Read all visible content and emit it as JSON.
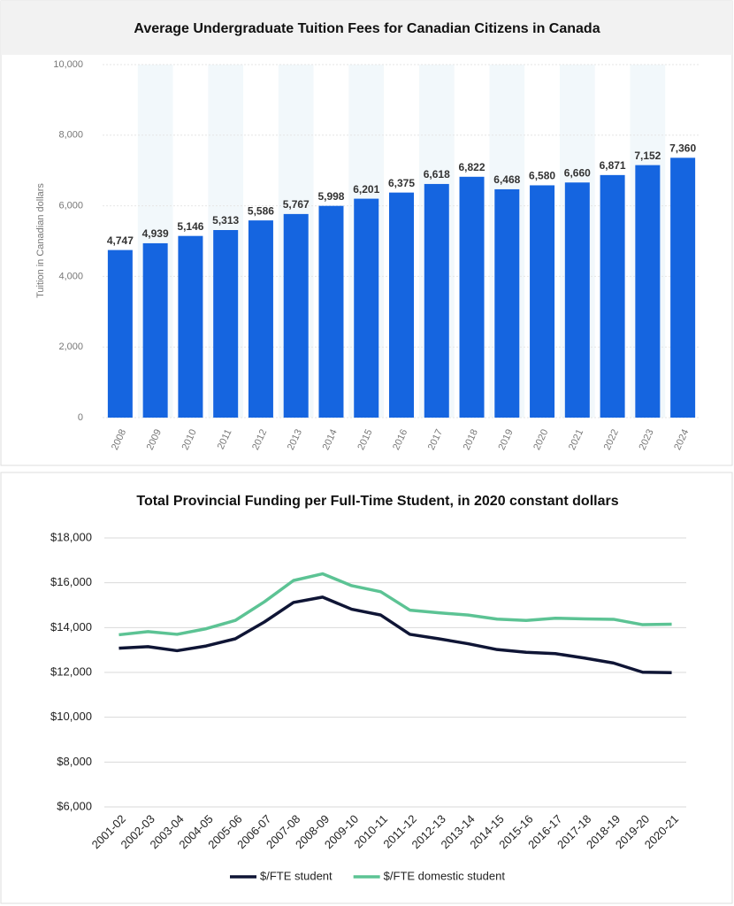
{
  "chart_data": [
    {
      "type": "bar",
      "title": "Average Undergraduate Tuition Fees for Canadian Citizens in Canada",
      "y_label": "Tuition in Canadian dollars",
      "categories": [
        "2008",
        "2009",
        "2010",
        "2011",
        "2012",
        "2013",
        "2014",
        "2015",
        "2016",
        "2017",
        "2018",
        "2019",
        "2020",
        "2021",
        "2022",
        "2023",
        "2024"
      ],
      "values": [
        4747,
        4939,
        5146,
        5313,
        5586,
        5767,
        5998,
        6201,
        6375,
        6618,
        6822,
        6468,
        6580,
        6660,
        6871,
        7152,
        7360
      ],
      "value_labels": [
        "4,747",
        "4,939",
        "5,146",
        "5,313",
        "5,586",
        "5,767",
        "5,998",
        "6,201",
        "6,375",
        "6,618",
        "6,822",
        "6,468",
        "6,580",
        "6,660",
        "6,871",
        "7,152",
        "7,360"
      ],
      "color": "#1565e0",
      "ylim": [
        0,
        10000
      ],
      "yticks": [
        0,
        {
          "value": 2000,
          "label": "2,000"
        },
        {
          "value": 4000,
          "label": "4,000"
        },
        {
          "value": 6000,
          "label": "6,000"
        },
        {
          "value": 8000,
          "label": "8,000"
        },
        {
          "value": 10000,
          "label": "10,000"
        }
      ],
      "grid": true
    },
    {
      "type": "line",
      "title": "Total Provincial Funding per Full-Time Student, in 2020 constant dollars",
      "categories": [
        "2001-02",
        "2002-03",
        "2003-04",
        "2004-05",
        "2005-06",
        "2006-07",
        "2007-08",
        "2008-09",
        "2009-10",
        "2010-11",
        "2011-12",
        "2012-13",
        "2013-14",
        "2014-15",
        "2015-16",
        "2016-17",
        "2017-18",
        "2018-19",
        "2019-20",
        "2020-21"
      ],
      "series": [
        {
          "name": "$/FTE student",
          "color": "#0f1535",
          "values": [
            13080,
            13150,
            12970,
            13180,
            13500,
            14250,
            15120,
            15360,
            14820,
            14560,
            13700,
            13500,
            13280,
            13020,
            12900,
            12840,
            12640,
            12420,
            12010,
            11990
          ]
        },
        {
          "name": "$/FTE domestic student",
          "color": "#5cc394",
          "values": [
            13680,
            13820,
            13700,
            13950,
            14320,
            15150,
            16100,
            16400,
            15870,
            15600,
            14780,
            14660,
            14560,
            14380,
            14320,
            14420,
            14390,
            14370,
            14130,
            14150
          ]
        }
      ],
      "ylim": [
        6000,
        18000
      ],
      "yticks": [
        {
          "value": 6000,
          "label": "$6,000"
        },
        {
          "value": 8000,
          "label": "$8,000"
        },
        {
          "value": 10000,
          "label": "$10,000"
        },
        {
          "value": 12000,
          "label": "$12,000"
        },
        {
          "value": 14000,
          "label": "$14,000"
        },
        {
          "value": 16000,
          "label": "$16,000"
        },
        {
          "value": 18000,
          "label": "$18,000"
        }
      ],
      "grid": true,
      "legend": "bottom"
    }
  ]
}
